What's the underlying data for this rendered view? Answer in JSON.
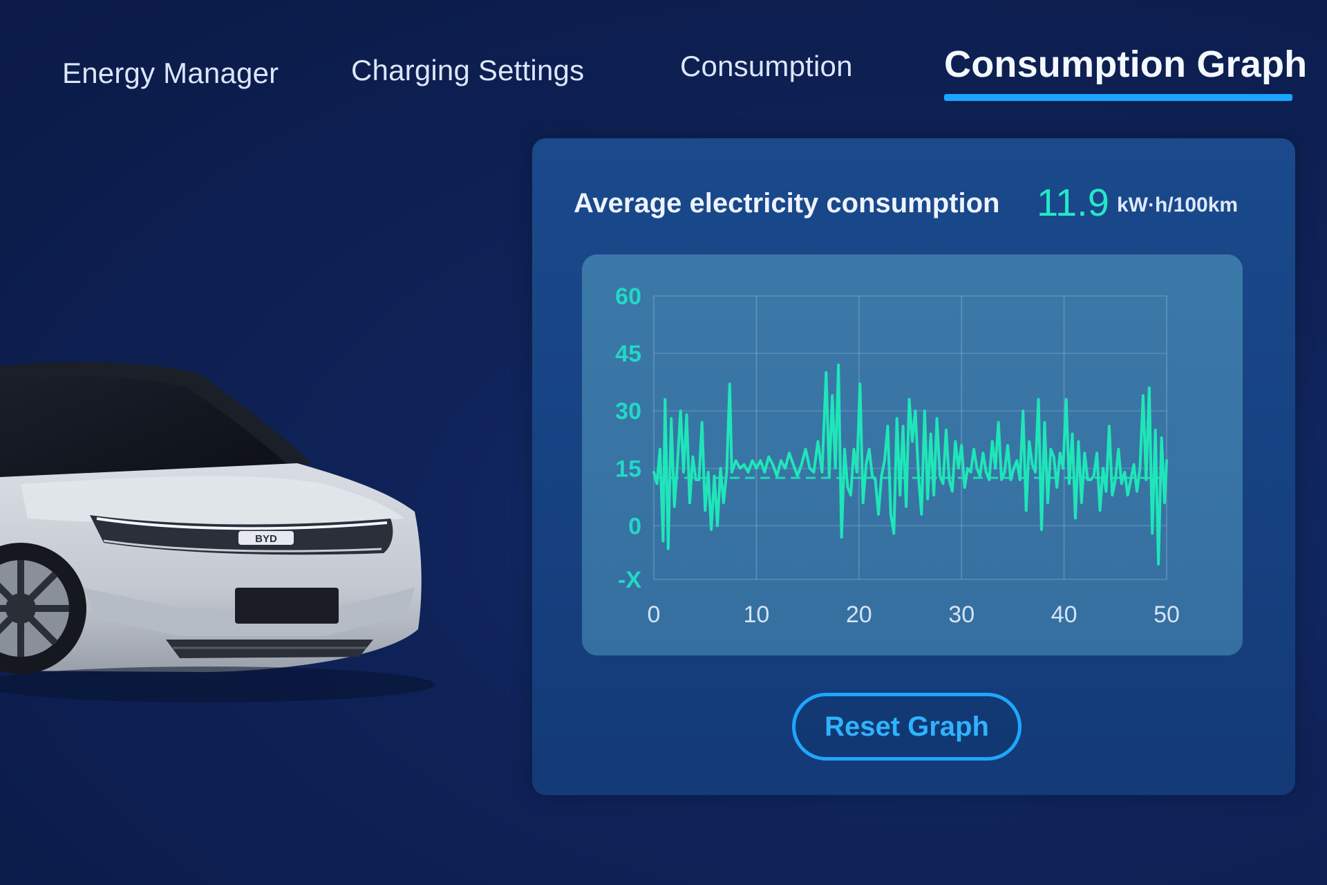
{
  "tabs": [
    {
      "label": "Energy Manager",
      "active": false
    },
    {
      "label": "Charging  Settings",
      "active": false
    },
    {
      "label": "Consumption",
      "active": false
    },
    {
      "label": "Consumption Graph",
      "active": true
    }
  ],
  "summary": {
    "label": "Average electricity consumption",
    "value": "11.9",
    "unit": "kW·h/100km"
  },
  "reset_button": {
    "label": "Reset Graph"
  },
  "colors": {
    "accent": "#1aa6ff",
    "line": "#1fe6b8",
    "value": "#26e6c8",
    "axis_labels": "#22d8c6"
  },
  "car": {
    "icon": "car-icon",
    "badge": "BYD"
  },
  "chart_data": {
    "type": "line",
    "title": "",
    "xlabel": "",
    "ylabel": "",
    "xlim": [
      0,
      50
    ],
    "ylim": [
      -14,
      60
    ],
    "x_ticks": [
      "0",
      "10",
      "20",
      "30",
      "40",
      "50"
    ],
    "y_ticks": [
      "60",
      "45",
      "30",
      "15",
      "0",
      "-X"
    ],
    "y_tick_values": [
      60,
      45,
      30,
      15,
      0,
      -14
    ],
    "grid": true,
    "reference_line": 12.5,
    "series": [
      {
        "x": [
          0,
          0.3,
          0.6,
          0.9,
          1.1,
          1.4,
          1.7,
          2.0,
          2.3,
          2.6,
          2.9,
          3.2,
          3.5,
          3.8,
          4.1,
          4.4,
          4.7,
          5.0,
          5.3,
          5.6,
          5.9,
          6.2,
          6.5,
          6.8,
          7.1,
          7.4,
          7.6,
          8.0,
          8.4,
          8.8,
          9.2,
          9.6,
          10.0,
          10.4,
          10.8,
          11.2,
          11.6,
          12.0,
          12.4,
          12.8,
          13.2,
          13.6,
          14.0,
          14.4,
          14.8,
          15.2,
          15.6,
          16.0,
          16.4,
          16.8,
          17.1,
          17.4,
          17.7,
          18.0,
          18.3,
          18.6,
          18.9,
          19.2,
          19.5,
          19.8,
          20.1,
          20.4,
          20.7,
          21.0,
          21.3,
          21.6,
          21.9,
          22.2,
          22.5,
          22.8,
          23.1,
          23.4,
          23.7,
          24.0,
          24.3,
          24.6,
          24.9,
          25.2,
          25.5,
          25.8,
          26.1,
          26.4,
          26.7,
          27.0,
          27.3,
          27.6,
          27.9,
          28.2,
          28.5,
          28.8,
          29.1,
          29.4,
          29.7,
          30.0,
          30.3,
          30.6,
          30.9,
          31.2,
          31.5,
          31.8,
          32.1,
          32.4,
          32.7,
          33.0,
          33.3,
          33.6,
          33.9,
          34.2,
          34.5,
          34.8,
          35.1,
          35.4,
          35.7,
          36.0,
          36.3,
          36.6,
          36.9,
          37.2,
          37.5,
          37.8,
          38.1,
          38.4,
          38.7,
          39.0,
          39.3,
          39.6,
          39.9,
          40.2,
          40.5,
          40.8,
          41.1,
          41.4,
          41.7,
          42.0,
          42.3,
          42.6,
          42.9,
          43.2,
          43.5,
          43.8,
          44.1,
          44.4,
          44.7,
          45.0,
          45.3,
          45.6,
          45.9,
          46.2,
          46.5,
          46.8,
          47.1,
          47.4,
          47.7,
          48.0,
          48.3,
          48.6,
          48.9,
          49.2,
          49.5,
          49.8,
          50.0
        ],
        "values": [
          14,
          11,
          20,
          -4,
          33,
          -6,
          28,
          5,
          16,
          30,
          14,
          29,
          6,
          18,
          12,
          12,
          27,
          4,
          14,
          -1,
          13,
          0,
          15,
          6,
          14,
          37,
          14,
          17,
          15,
          16,
          14,
          17,
          15,
          17,
          14,
          18,
          16,
          13,
          17,
          15,
          19,
          16,
          13,
          16,
          20,
          15,
          14,
          22,
          14,
          40,
          13,
          34,
          15,
          42,
          -3,
          20,
          10,
          8,
          20,
          14,
          37,
          6,
          16,
          20,
          13,
          12,
          3,
          13,
          17,
          26,
          3,
          -2,
          28,
          8,
          26,
          5,
          33,
          22,
          30,
          13,
          3,
          30,
          7,
          24,
          8,
          28,
          13,
          11,
          25,
          12,
          9,
          22,
          15,
          21,
          10,
          15,
          14,
          20,
          15,
          13,
          19,
          14,
          12,
          22,
          15,
          27,
          12,
          14,
          21,
          12,
          15,
          17,
          12,
          30,
          4,
          22,
          16,
          14,
          33,
          -1,
          27,
          6,
          20,
          18,
          10,
          19,
          15,
          33,
          11,
          24,
          2,
          22,
          6,
          19,
          12,
          12,
          13,
          19,
          4,
          15,
          9,
          26,
          8,
          12,
          20,
          11,
          14,
          8,
          12,
          16,
          9,
          15,
          34,
          12,
          36,
          -2,
          25,
          -10,
          23,
          6,
          17
        ]
      }
    ]
  }
}
